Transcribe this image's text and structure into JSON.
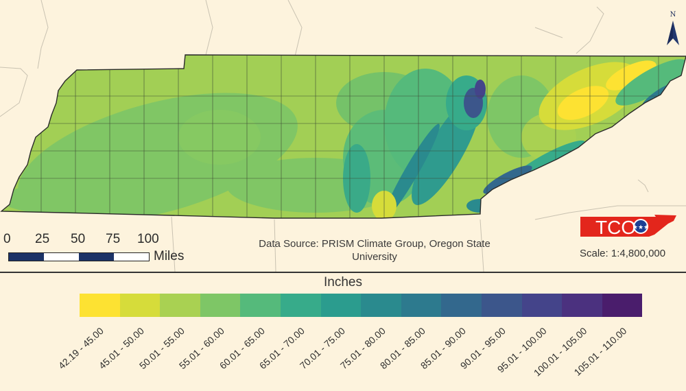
{
  "map": {
    "units_title": "Inches",
    "data_source": "Data Source: PRISM Climate Group, Oregon State University",
    "scale_ratio": "Scale: 1:4,800,000",
    "north_label": "N",
    "scale_bar": {
      "ticks": [
        "0",
        "25",
        "50",
        "75",
        "100"
      ],
      "unit": "Miles"
    },
    "logo_text": "TCO",
    "logo_color": "#e3261c"
  },
  "legend": {
    "classes": [
      {
        "label": "42.19 - 45.00",
        "color": "#fde232"
      },
      {
        "label": "45.01 - 50.00",
        "color": "#d6dc3a"
      },
      {
        "label": "50.01 - 55.00",
        "color": "#a9d152"
      },
      {
        "label": "55.01 - 60.00",
        "color": "#7ec666"
      },
      {
        "label": "60.01 - 65.00",
        "color": "#55ba7b"
      },
      {
        "label": "65.01 - 70.00",
        "color": "#37ab8a"
      },
      {
        "label": "70.01 - 75.00",
        "color": "#2b9c8e"
      },
      {
        "label": "75.01 - 80.00",
        "color": "#2a8a8e"
      },
      {
        "label": "80.01 - 85.00",
        "color": "#2d7a8e"
      },
      {
        "label": "85.01 - 90.00",
        "color": "#33688d"
      },
      {
        "label": "90.01 - 95.00",
        "color": "#3c568b"
      },
      {
        "label": "95.01 - 100.00",
        "color": "#44448a"
      },
      {
        "label": "100.01 - 105.00",
        "color": "#4b317f"
      },
      {
        "label": "105.01 - 110.00",
        "color": "#4a1d6c"
      }
    ]
  }
}
